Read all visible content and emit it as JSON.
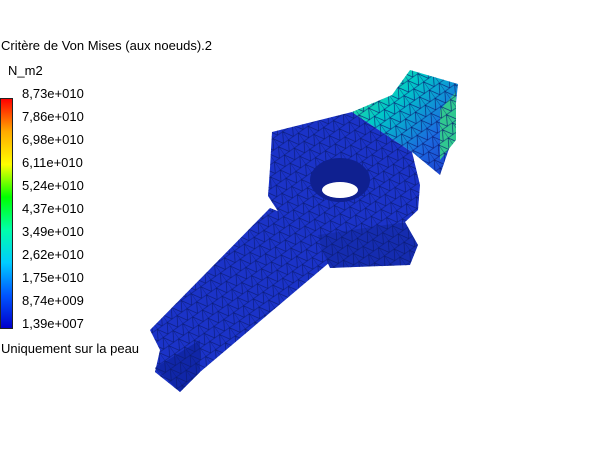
{
  "legend": {
    "title": "Critère de Von Mises (aux noeuds).2",
    "unit": "N_m2",
    "ticks": [
      "8,73e+010",
      "7,86e+010",
      "6,98e+010",
      "6,11e+010",
      "5,24e+010",
      "4,37e+010",
      "3,49e+010",
      "2,62e+010",
      "1,75e+010",
      "8,74e+009",
      "1,39e+007"
    ],
    "note": "Uniquement sur la peau",
    "scale_colors": [
      "#ff0000",
      "#ffaa00",
      "#ffff00",
      "#00ff00",
      "#00ffaa",
      "#00ccff",
      "#0055ff",
      "#0000cc"
    ]
  },
  "model": {
    "base_color": "#1b33c8",
    "mesh_color": "#0a1a70",
    "hot_colors": [
      "#00d0c0",
      "#40e080",
      "#a0e020"
    ]
  }
}
